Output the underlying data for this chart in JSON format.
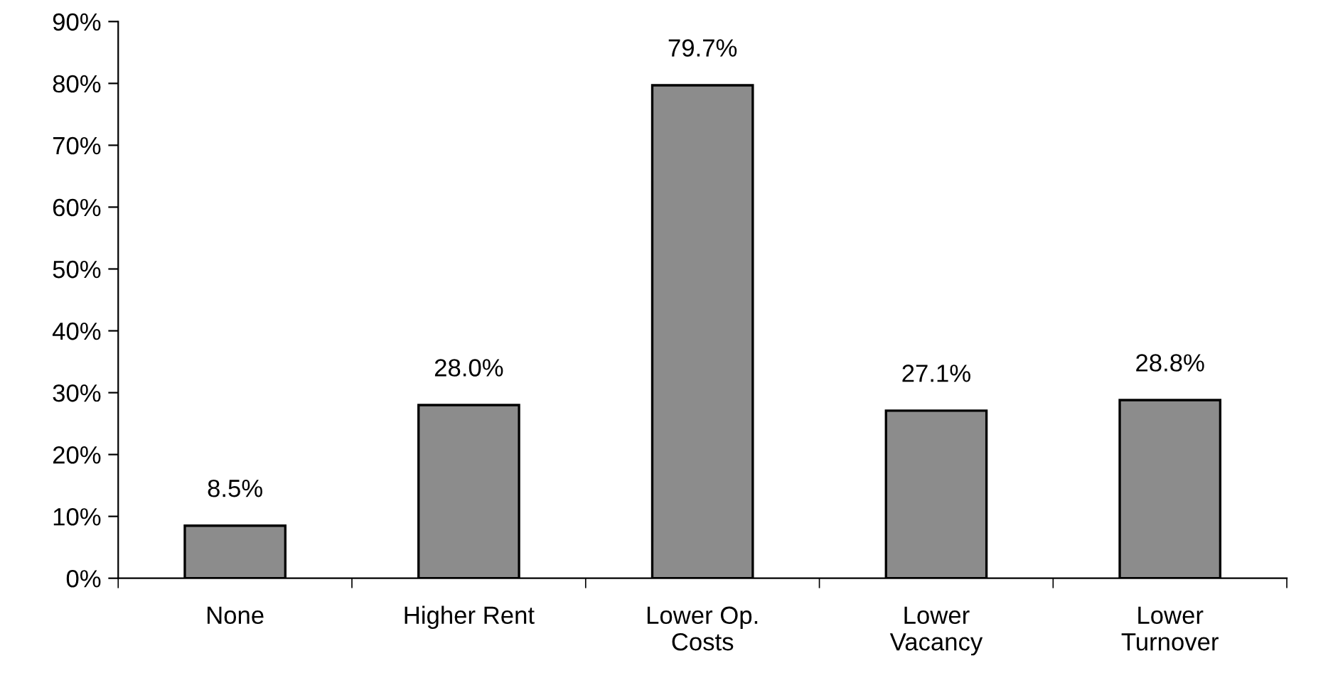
{
  "chart_data": {
    "type": "bar",
    "categories": [
      "None",
      "Higher Rent",
      "Lower Op.\nCosts",
      "Lower\nVacancy",
      "Lower\nTurnover"
    ],
    "values": [
      8.5,
      28.0,
      79.7,
      27.1,
      28.8
    ],
    "value_labels": [
      "8.5%",
      "28.0%",
      "79.7%",
      "27.1%",
      "28.8%"
    ],
    "color": "#8c8c8c",
    "ylim": [
      0,
      90
    ],
    "yticks": [
      {
        "value": 0,
        "label": "0%"
      },
      {
        "value": 10,
        "label": "10%"
      },
      {
        "value": 20,
        "label": "20%"
      },
      {
        "value": 30,
        "label": "30%"
      },
      {
        "value": 40,
        "label": "40%"
      },
      {
        "value": 50,
        "label": "50%"
      },
      {
        "value": 60,
        "label": "60%"
      },
      {
        "value": 70,
        "label": "70%"
      },
      {
        "value": 80,
        "label": "80%"
      },
      {
        "value": 90,
        "label": "90%"
      }
    ],
    "grid": false
  }
}
